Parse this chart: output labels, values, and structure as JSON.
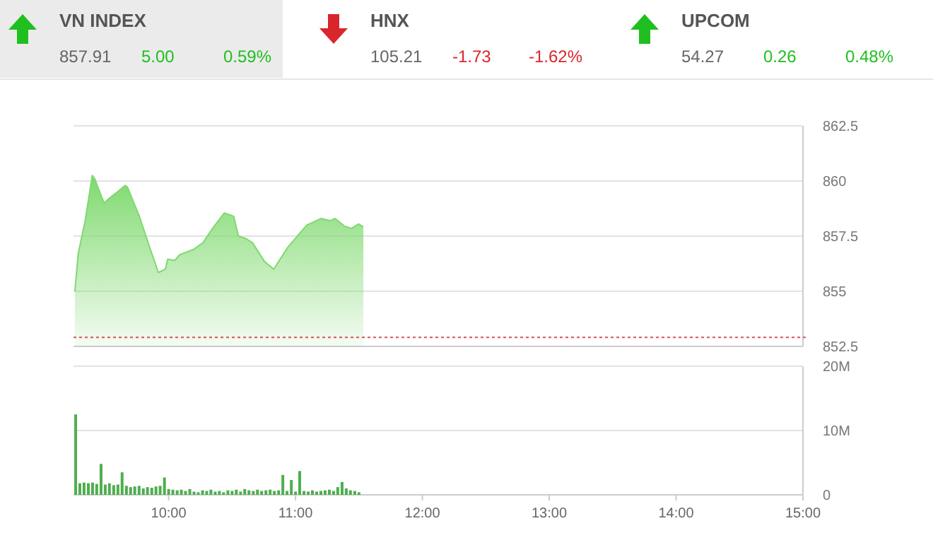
{
  "chart_data": [
    {
      "type": "other",
      "categories": [
        "VN INDEX",
        "HNX",
        "UPCOM"
      ],
      "colors": [
        "#1fbf1f",
        "#d9262c",
        "#1fbf1f"
      ],
      "annotations": [
        "857.91",
        "5.00",
        "0.59%",
        "105.21",
        "-1.73",
        "-1.62%",
        "54.27",
        "0.26",
        "0.48%"
      ]
    },
    {
      "type": "area",
      "x": [
        9.261,
        9.287,
        9.342,
        9.398,
        9.417,
        9.491,
        9.528,
        9.584,
        9.658,
        9.677,
        9.769,
        9.844,
        9.919,
        9.974,
        9.992,
        10.048,
        10.086,
        10.197,
        10.271,
        10.346,
        10.438,
        10.513,
        10.55,
        10.605,
        10.661,
        10.755,
        10.828,
        10.94,
        11.089,
        11.201,
        11.274,
        11.312,
        11.386,
        11.441,
        11.497,
        11.535
      ],
      "series": [
        {
          "color": "#7fd96f",
          "values": [
            855.0,
            856.7,
            858.2,
            860.25,
            860.1,
            859.0,
            859.2,
            859.45,
            859.8,
            859.7,
            858.4,
            857.1,
            855.85,
            856.0,
            856.45,
            856.4,
            856.65,
            856.9,
            857.2,
            857.85,
            858.55,
            858.4,
            857.5,
            857.4,
            857.2,
            856.35,
            856.0,
            857.0,
            858.0,
            858.3,
            858.2,
            858.3,
            857.95,
            857.85,
            858.05,
            857.91
          ]
        }
      ],
      "xlim": [
        9.25,
        15
      ],
      "ylim": [
        852.5,
        862.5
      ],
      "yticks": [
        852.5,
        855,
        857.5,
        860,
        862.5
      ],
      "grid": "y",
      "tick_labels": "y",
      "ref_lines": [
        {
          "axis": "y",
          "value": 852.91,
          "color": "#d9534f",
          "line_style": "dotted"
        }
      ]
    },
    {
      "type": "bar",
      "x": [
        9.267,
        9.3,
        9.333,
        9.367,
        9.4,
        9.433,
        9.467,
        9.5,
        9.533,
        9.567,
        9.6,
        9.633,
        9.667,
        9.7,
        9.733,
        9.767,
        9.8,
        9.833,
        9.867,
        9.9,
        9.933,
        9.967,
        10.0,
        10.033,
        10.067,
        10.1,
        10.133,
        10.167,
        10.2,
        10.233,
        10.267,
        10.3,
        10.333,
        10.367,
        10.4,
        10.433,
        10.467,
        10.5,
        10.533,
        10.567,
        10.6,
        10.633,
        10.667,
        10.7,
        10.733,
        10.767,
        10.8,
        10.833,
        10.867,
        10.9,
        10.933,
        10.967,
        11.0,
        11.033,
        11.067,
        11.1,
        11.133,
        11.167,
        11.2,
        11.233,
        11.267,
        11.3,
        11.333,
        11.367,
        11.4,
        11.433,
        11.467,
        11.5
      ],
      "series": [
        {
          "color": "#4fae4f",
          "values": [
            12.5,
            1.8,
            1.9,
            1.8,
            1.9,
            1.7,
            4.8,
            1.6,
            1.8,
            1.5,
            1.6,
            3.5,
            1.4,
            1.2,
            1.3,
            1.4,
            1.0,
            1.2,
            1.1,
            1.3,
            1.4,
            2.7,
            0.9,
            0.8,
            0.7,
            0.8,
            0.6,
            0.9,
            0.5,
            0.4,
            0.7,
            0.6,
            0.8,
            0.5,
            0.6,
            0.4,
            0.7,
            0.6,
            0.8,
            0.5,
            0.9,
            0.7,
            0.6,
            0.8,
            0.6,
            0.7,
            0.8,
            0.6,
            0.7,
            3.1,
            0.6,
            2.3,
            0.5,
            3.7,
            0.6,
            0.5,
            0.7,
            0.5,
            0.6,
            0.7,
            0.8,
            0.6,
            1.2,
            2.0,
            1.0,
            0.7,
            0.6,
            0.4
          ]
        }
      ],
      "xlim": [
        9.25,
        15
      ],
      "xticks": [
        {
          "value": 10,
          "label": "10:00"
        },
        {
          "value": 11,
          "label": "11:00"
        },
        {
          "value": 12,
          "label": "12:00"
        },
        {
          "value": 13,
          "label": "13:00"
        },
        {
          "value": 14,
          "label": "14:00"
        },
        {
          "value": 15,
          "label": "15:00"
        }
      ],
      "ylim": [
        0,
        20
      ],
      "yticks": [
        {
          "value": 0,
          "label": "0"
        },
        {
          "value": 10,
          "label": "10M"
        },
        {
          "value": 20,
          "label": "20M"
        }
      ],
      "grid": "y"
    }
  ]
}
